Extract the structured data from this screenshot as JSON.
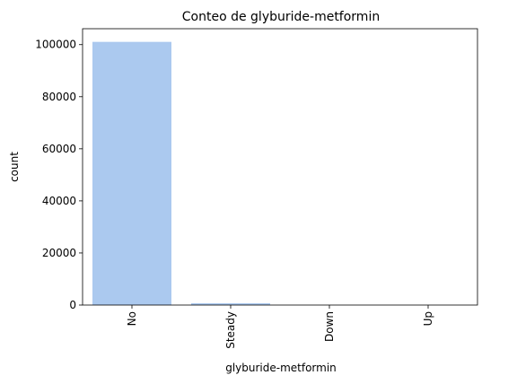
{
  "chart_data": {
    "type": "bar",
    "title": "Conteo de glyburide-metformin",
    "xlabel": "glyburide-metformin",
    "ylabel": "count",
    "categories": [
      "No",
      "Steady",
      "Down",
      "Up"
    ],
    "values": [
      101060,
      692,
      6,
      2
    ],
    "ylim": [
      0,
      106113
    ],
    "yticks": [
      0,
      20000,
      40000,
      60000,
      80000,
      100000
    ],
    "yticklabels": [
      "0",
      "20000",
      "40000",
      "60000",
      "80000",
      "100000"
    ],
    "bar_color": "#abc9ef",
    "grid": false,
    "legend": "none",
    "xtick_rotation": 90
  }
}
